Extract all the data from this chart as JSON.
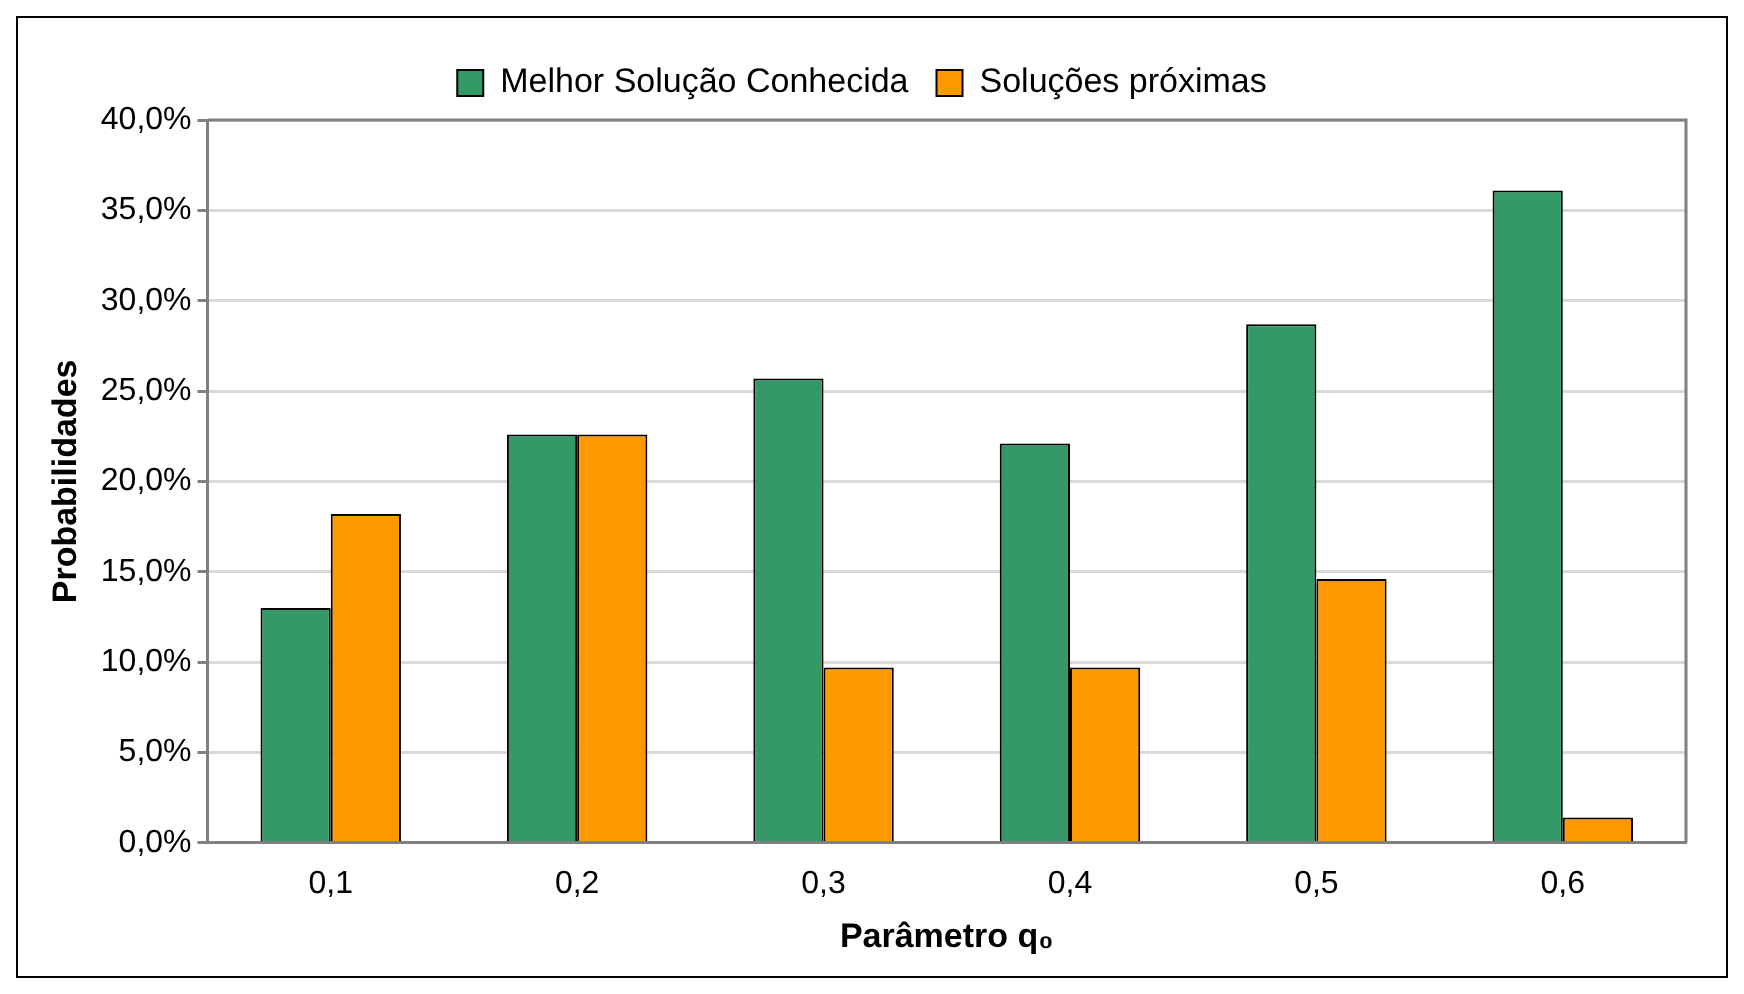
{
  "chart_data": {
    "type": "bar",
    "xlabel": "Parâmetro q₀",
    "ylabel": "Probabilidades",
    "categories": [
      "0,1",
      "0,2",
      "0,3",
      "0,4",
      "0,5",
      "0,6"
    ],
    "series": [
      {
        "name": "Melhor Solução Conhecida",
        "color": "#339966",
        "values": [
          13.0,
          22.6,
          25.7,
          22.1,
          28.7,
          36.1
        ]
      },
      {
        "name": "Soluções próximas",
        "color": "#ff9900",
        "values": [
          18.2,
          22.6,
          9.7,
          9.7,
          14.6,
          1.4
        ]
      }
    ],
    "ylim": [
      0,
      40
    ],
    "yticks": [
      {
        "value": 0,
        "label": "0,0%"
      },
      {
        "value": 5,
        "label": "5,0%"
      },
      {
        "value": 10,
        "label": "10,0%"
      },
      {
        "value": 15,
        "label": "15,0%"
      },
      {
        "value": 20,
        "label": "20,0%"
      },
      {
        "value": 25,
        "label": "25,0%"
      },
      {
        "value": 30,
        "label": "30,0%"
      },
      {
        "value": 35,
        "label": "35,0%"
      },
      {
        "value": 40,
        "label": "40,0%"
      }
    ],
    "grid": "y",
    "legend": "top"
  }
}
